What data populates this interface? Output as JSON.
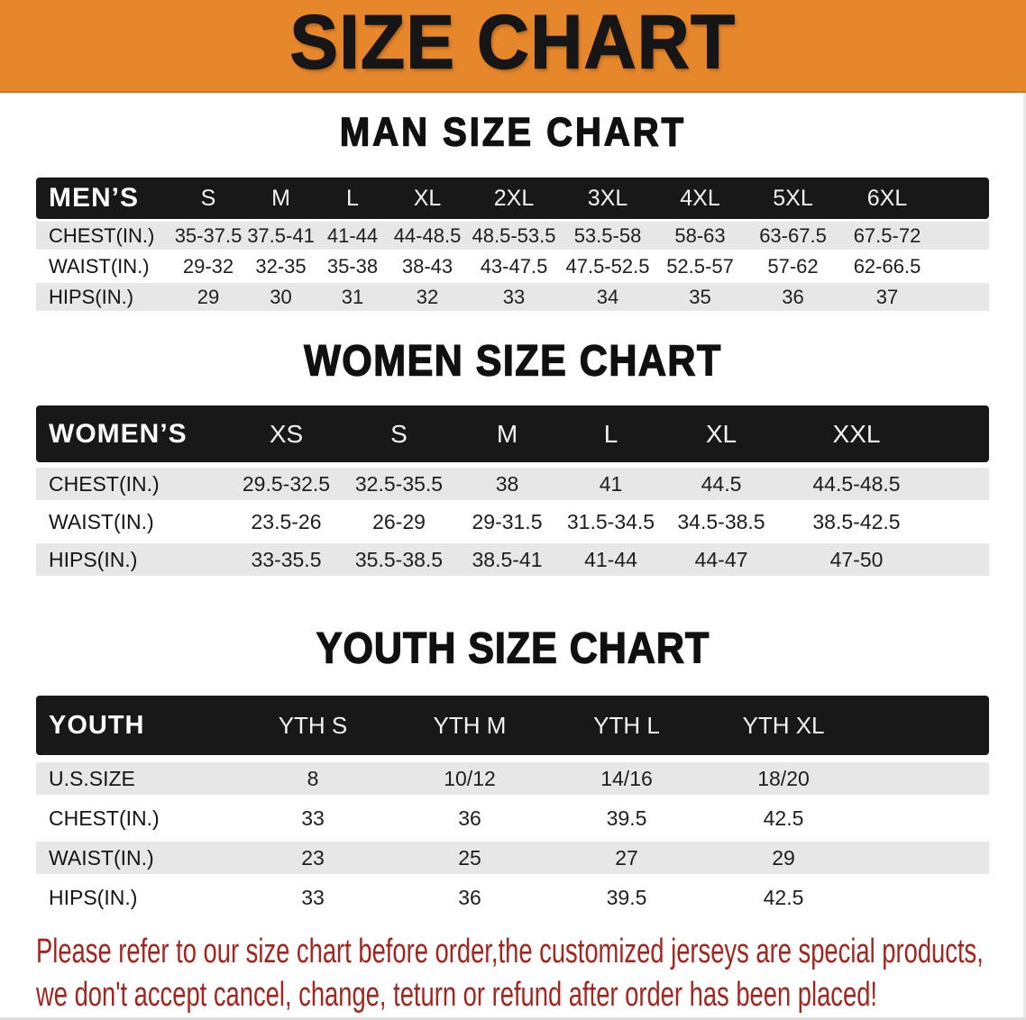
{
  "banner": {
    "title": "SIZE CHART"
  },
  "colors": {
    "banner_bg": "#E6872C",
    "header_bg": "#181818",
    "row_alt": "#E7E7E7",
    "note_red": "#A2261F"
  },
  "man": {
    "heading": "MAN SIZE CHART",
    "table": {
      "header": [
        "MEN’S",
        "S",
        "M",
        "L",
        "XL",
        "2XL",
        "3XL",
        "4XL",
        "5XL",
        "6XL"
      ],
      "rows": [
        [
          "CHEST(IN.)",
          "35-37.5",
          "37.5-41",
          "41-44",
          "44-48.5",
          "48.5-53.5",
          "53.5-58",
          "58-63",
          "63-67.5",
          "67.5-72"
        ],
        [
          "WAIST(IN.)",
          "29-32",
          "32-35",
          "35-38",
          "38-43",
          "43-47.5",
          "47.5-52.5",
          "52.5-57",
          "57-62",
          "62-66.5"
        ],
        [
          "HIPS(IN.)",
          "29",
          "30",
          "31",
          "32",
          "33",
          "34",
          "35",
          "36",
          "37"
        ]
      ]
    }
  },
  "women": {
    "heading": "WOMEN SIZE CHART",
    "table": {
      "header": [
        "WOMEN’S",
        "XS",
        "S",
        "M",
        "L",
        "XL",
        "XXL"
      ],
      "rows": [
        [
          "CHEST(IN.)",
          "29.5-32.5",
          "32.5-35.5",
          "38",
          "41",
          "44.5",
          "44.5-48.5"
        ],
        [
          "WAIST(IN.)",
          "23.5-26",
          "26-29",
          "29-31.5",
          "31.5-34.5",
          "34.5-38.5",
          "38.5-42.5"
        ],
        [
          "HIPS(IN.)",
          "33-35.5",
          "35.5-38.5",
          "38.5-41",
          "41-44",
          "44-47",
          "47-50"
        ]
      ]
    }
  },
  "youth": {
    "heading": "YOUTH SIZE CHART",
    "table": {
      "header": [
        "YOUTH",
        "YTH S",
        "YTH M",
        "YTH L",
        "YTH XL"
      ],
      "rows": [
        [
          "U.S.SIZE",
          "8",
          "10/12",
          "14/16",
          "18/20"
        ],
        [
          "CHEST(IN.)",
          "33",
          "36",
          "39.5",
          "42.5"
        ],
        [
          "WAIST(IN.)",
          "23",
          "25",
          "27",
          "29"
        ],
        [
          "HIPS(IN.)",
          "33",
          "36",
          "39.5",
          "42.5"
        ]
      ]
    }
  },
  "note": {
    "lines": [
      "Please refer to our size chart before order,the customized jerseys are special products,",
      "we don't accept cancel, change, teturn or refund after order has been placed!"
    ]
  }
}
